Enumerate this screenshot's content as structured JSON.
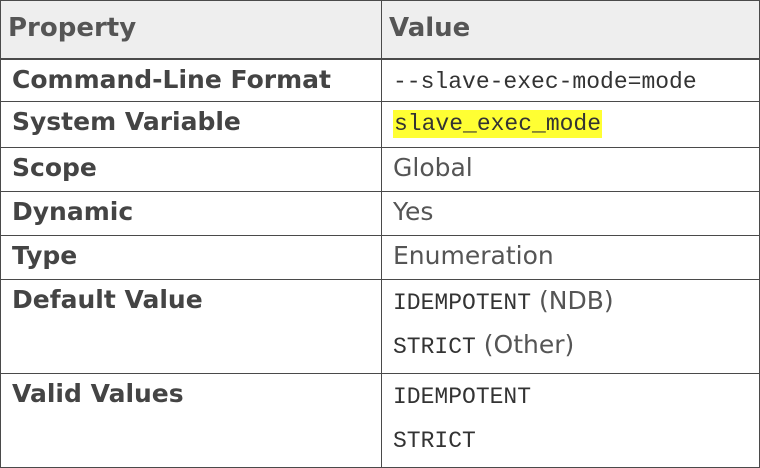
{
  "table": {
    "headers": {
      "property": "Property",
      "value": "Value"
    },
    "rows": {
      "command_line_format": {
        "label": "Command-Line Format",
        "value": "--slave-exec-mode=mode"
      },
      "system_variable": {
        "label": "System Variable",
        "value": "slave_exec_mode",
        "highlight_color": "#ffff33"
      },
      "scope": {
        "label": "Scope",
        "value": "Global"
      },
      "dynamic": {
        "label": "Dynamic",
        "value": "Yes"
      },
      "type": {
        "label": "Type",
        "value": "Enumeration"
      },
      "default_value": {
        "label": "Default Value",
        "entries": [
          {
            "code": "IDEMPOTENT",
            "note": "(NDB)"
          },
          {
            "code": "STRICT",
            "note": "(Other)"
          }
        ]
      },
      "valid_values": {
        "label": "Valid Values",
        "entries": [
          "IDEMPOTENT",
          "STRICT"
        ]
      }
    }
  }
}
